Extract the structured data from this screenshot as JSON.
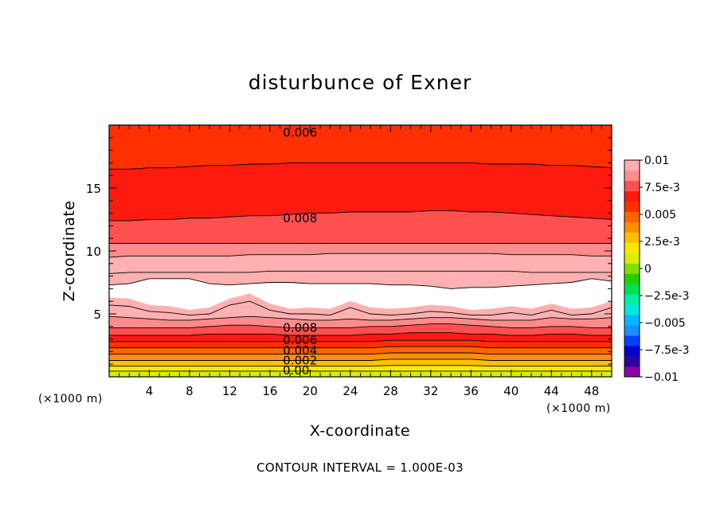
{
  "chart_data": {
    "type": "heatmap",
    "title": "disturbunce of Exner",
    "xlabel": "X-coordinate",
    "ylabel": "Z-coordinate",
    "x_unit": "(×1000 m)",
    "y_unit": "(×1000 m)",
    "xlim": [
      0,
      50
    ],
    "ylim": [
      0,
      20
    ],
    "x_ticks": [
      4,
      8,
      12,
      16,
      20,
      24,
      28,
      32,
      36,
      40,
      44,
      48
    ],
    "y_ticks": [
      5,
      10,
      15
    ],
    "colorbar": {
      "range": [
        -0.01,
        0.01
      ],
      "tick_labels": [
        "0.01",
        "7.5e-3",
        "0.005",
        "2.5e-3",
        "0",
        "−2.5e-3",
        "−0.005",
        "−7.5e-3",
        "−0.01"
      ],
      "tick_values": [
        0.01,
        0.0075,
        0.005,
        0.0025,
        0,
        -0.0025,
        -0.005,
        -0.0075,
        -0.01
      ],
      "colors": [
        "#8b00a8",
        "#3000a0",
        "#0000d0",
        "#0040f8",
        "#1890ff",
        "#00b8ff",
        "#00e8e0",
        "#00f0a0",
        "#00e050",
        "#20d000",
        "#80e000",
        "#d8f000",
        "#ffe800",
        "#ffc000",
        "#ff9000",
        "#ff6400",
        "#ff3000",
        "#ff1a10",
        "#ff5050",
        "#ff8c8c",
        "#ffb0b0"
      ]
    },
    "contour_interval": "CONTOUR INTERVAL = 1.000E-03",
    "contour_labels": [
      {
        "text": "0.006",
        "x": 19,
        "z": 19.4
      },
      {
        "text": "0.008",
        "x": 19,
        "z": 12.6
      },
      {
        "text": "0.008",
        "x": 19,
        "z": 3.9
      },
      {
        "text": "0.006",
        "x": 19,
        "z": 2.9
      },
      {
        "text": "0.004",
        "x": 19,
        "z": 2.1
      },
      {
        "text": "0.002",
        "x": 19,
        "z": 1.3
      },
      {
        "text": "0.00",
        "x": 18.6,
        "z": 0.5
      }
    ],
    "upper_bands": [
      {
        "value": 0.006,
        "z0": [
          20,
          20,
          20,
          20,
          20,
          20,
          20,
          20,
          20,
          20,
          20,
          20,
          20,
          20,
          20,
          20,
          20,
          20,
          20,
          20,
          20,
          20,
          20,
          20,
          20,
          20
        ],
        "z1": [
          16.5,
          16.5,
          16.6,
          16.6,
          16.7,
          16.8,
          16.8,
          16.9,
          16.9,
          17.0,
          17.0,
          17.0,
          17.0,
          17.0,
          17.0,
          17.0,
          17.0,
          17.0,
          17.0,
          16.9,
          16.9,
          16.9,
          16.8,
          16.8,
          16.7,
          16.6
        ]
      },
      {
        "value": 0.007,
        "z0": [
          16.5,
          16.5,
          16.6,
          16.6,
          16.7,
          16.8,
          16.8,
          16.9,
          16.9,
          17.0,
          17.0,
          17.0,
          17.0,
          17.0,
          17.0,
          17.0,
          17.0,
          17.0,
          17.0,
          16.9,
          16.9,
          16.9,
          16.8,
          16.8,
          16.7,
          16.6
        ],
        "z1": [
          12.4,
          12.4,
          12.5,
          12.5,
          12.6,
          12.6,
          12.7,
          12.8,
          12.8,
          12.9,
          13.0,
          13.0,
          13.1,
          13.1,
          13.1,
          13.1,
          13.2,
          13.2,
          13.1,
          13.1,
          13.0,
          12.9,
          12.8,
          12.7,
          12.6,
          12.5
        ]
      },
      {
        "value": 0.008,
        "z0": [
          12.4,
          12.4,
          12.5,
          12.5,
          12.6,
          12.6,
          12.7,
          12.8,
          12.8,
          12.9,
          13.0,
          13.0,
          13.1,
          13.1,
          13.1,
          13.1,
          13.2,
          13.2,
          13.1,
          13.1,
          13.0,
          12.9,
          12.8,
          12.7,
          12.6,
          12.5
        ],
        "z1": [
          10.6,
          10.6,
          10.6,
          10.6,
          10.6,
          10.6,
          10.6,
          10.6,
          10.6,
          10.6,
          10.6,
          10.6,
          10.6,
          10.6,
          10.6,
          10.6,
          10.6,
          10.6,
          10.6,
          10.6,
          10.6,
          10.6,
          10.6,
          10.6,
          10.6,
          10.6
        ]
      },
      {
        "value": 0.009,
        "z0": [
          10.6,
          10.6,
          10.6,
          10.6,
          10.6,
          10.6,
          10.6,
          10.6,
          10.6,
          10.6,
          10.6,
          10.6,
          10.6,
          10.6,
          10.6,
          10.6,
          10.6,
          10.6,
          10.6,
          10.6,
          10.6,
          10.6,
          10.6,
          10.6,
          10.6,
          10.6
        ],
        "z1": [
          9.5,
          9.6,
          9.6,
          9.6,
          9.6,
          9.6,
          9.6,
          9.7,
          9.7,
          9.7,
          9.7,
          9.8,
          9.8,
          9.8,
          9.8,
          9.8,
          9.8,
          9.8,
          9.8,
          9.8,
          9.7,
          9.7,
          9.7,
          9.7,
          9.6,
          9.6
        ]
      },
      {
        "value": 0.0095,
        "z0": [
          9.5,
          9.6,
          9.6,
          9.6,
          9.6,
          9.6,
          9.6,
          9.7,
          9.7,
          9.7,
          9.7,
          9.8,
          9.8,
          9.8,
          9.8,
          9.8,
          9.8,
          9.8,
          9.8,
          9.8,
          9.7,
          9.7,
          9.7,
          9.7,
          9.6,
          9.6
        ],
        "z1": [
          8.2,
          8.3,
          8.3,
          8.3,
          8.3,
          8.3,
          8.3,
          8.3,
          8.4,
          8.4,
          8.4,
          8.4,
          8.4,
          8.4,
          8.4,
          8.4,
          8.4,
          8.4,
          8.4,
          8.4,
          8.4,
          8.3,
          8.3,
          8.3,
          8.3,
          8.3
        ]
      },
      {
        "value": 0.0099,
        "z0": [
          8.2,
          8.3,
          8.3,
          8.3,
          8.3,
          8.3,
          8.3,
          8.3,
          8.4,
          8.4,
          8.4,
          8.4,
          8.4,
          8.4,
          8.4,
          8.4,
          8.4,
          8.4,
          8.4,
          8.4,
          8.4,
          8.3,
          8.3,
          8.3,
          8.3,
          8.3
        ],
        "z1": [
          7.3,
          7.4,
          7.8,
          7.8,
          7.8,
          7.4,
          7.3,
          7.4,
          7.5,
          7.5,
          7.4,
          7.4,
          7.4,
          7.4,
          7.3,
          7.3,
          7.2,
          7.0,
          7.1,
          7.1,
          7.2,
          7.3,
          7.4,
          7.5,
          7.8,
          7.6
        ]
      }
    ],
    "lower_bands": [
      {
        "value": 0.0099,
        "z0": [
          6.3,
          6.2,
          5.7,
          5.6,
          5.3,
          5.5,
          6.2,
          6.6,
          5.8,
          5.4,
          5.5,
          5.4,
          6.0,
          5.5,
          5.4,
          5.5,
          5.7,
          5.6,
          5.3,
          5.4,
          5.6,
          5.4,
          5.8,
          5.4,
          5.5,
          6.0
        ],
        "z1": [
          5.7,
          5.6,
          5.2,
          5.1,
          4.9,
          5.0,
          5.7,
          6.0,
          5.3,
          5.0,
          5.0,
          4.9,
          5.5,
          5.0,
          4.9,
          5.0,
          5.2,
          5.1,
          4.9,
          4.9,
          5.1,
          4.9,
          5.3,
          4.9,
          5.0,
          5.5
        ]
      },
      {
        "value": 0.0095,
        "z0": [
          5.7,
          5.6,
          5.2,
          5.1,
          4.9,
          5.0,
          5.7,
          6.0,
          5.3,
          5.0,
          5.0,
          4.9,
          5.5,
          5.0,
          4.9,
          5.0,
          5.2,
          5.1,
          4.9,
          4.9,
          5.1,
          4.9,
          5.3,
          4.9,
          5.0,
          5.5
        ],
        "z1": [
          4.8,
          4.7,
          4.6,
          4.5,
          4.5,
          4.6,
          4.7,
          4.8,
          4.7,
          4.6,
          4.5,
          4.5,
          4.6,
          4.5,
          4.5,
          4.6,
          4.7,
          4.7,
          4.6,
          4.5,
          4.5,
          4.5,
          4.7,
          4.6,
          4.6,
          4.7
        ]
      },
      {
        "value": 0.009,
        "z0": [
          4.8,
          4.7,
          4.6,
          4.5,
          4.5,
          4.6,
          4.7,
          4.8,
          4.7,
          4.6,
          4.5,
          4.5,
          4.6,
          4.5,
          4.5,
          4.6,
          4.7,
          4.7,
          4.6,
          4.5,
          4.5,
          4.5,
          4.7,
          4.6,
          4.6,
          4.7
        ],
        "z1": [
          3.9,
          3.9,
          3.9,
          3.9,
          3.9,
          4.0,
          4.1,
          4.1,
          4.0,
          3.9,
          3.9,
          3.9,
          3.9,
          4.0,
          4.0,
          4.1,
          4.2,
          4.2,
          4.1,
          4.0,
          3.9,
          3.9,
          4.0,
          4.0,
          3.9,
          3.9
        ]
      },
      {
        "value": 0.008,
        "z0": [
          3.9,
          3.9,
          3.9,
          3.9,
          3.9,
          4.0,
          4.1,
          4.1,
          4.0,
          3.9,
          3.9,
          3.9,
          3.9,
          4.0,
          4.0,
          4.1,
          4.2,
          4.2,
          4.1,
          4.0,
          3.9,
          3.9,
          4.0,
          4.0,
          3.9,
          3.9
        ],
        "z1": [
          3.3,
          3.3,
          3.3,
          3.3,
          3.3,
          3.4,
          3.4,
          3.4,
          3.4,
          3.3,
          3.3,
          3.3,
          3.3,
          3.4,
          3.4,
          3.5,
          3.5,
          3.5,
          3.4,
          3.4,
          3.3,
          3.3,
          3.4,
          3.4,
          3.3,
          3.3
        ]
      },
      {
        "value": 0.007,
        "z0": [
          3.3,
          3.3,
          3.3,
          3.3,
          3.3,
          3.4,
          3.4,
          3.4,
          3.4,
          3.3,
          3.3,
          3.3,
          3.3,
          3.4,
          3.4,
          3.5,
          3.5,
          3.5,
          3.4,
          3.4,
          3.3,
          3.3,
          3.4,
          3.4,
          3.3,
          3.3
        ],
        "z1": [
          2.8,
          2.8,
          2.8,
          2.8,
          2.8,
          2.8,
          2.8,
          2.8,
          2.8,
          2.8,
          2.8,
          2.8,
          2.8,
          2.8,
          2.9,
          2.9,
          2.9,
          2.9,
          2.9,
          2.8,
          2.8,
          2.8,
          2.8,
          2.8,
          2.8,
          2.8
        ]
      },
      {
        "value": 0.006,
        "z0": [
          2.8,
          2.8,
          2.8,
          2.8,
          2.8,
          2.8,
          2.8,
          2.8,
          2.8,
          2.8,
          2.8,
          2.8,
          2.8,
          2.8,
          2.9,
          2.9,
          2.9,
          2.9,
          2.9,
          2.8,
          2.8,
          2.8,
          2.8,
          2.8,
          2.8,
          2.8
        ],
        "z1": [
          2.3,
          2.3,
          2.3,
          2.3,
          2.3,
          2.3,
          2.3,
          2.3,
          2.3,
          2.3,
          2.3,
          2.3,
          2.3,
          2.3,
          2.4,
          2.4,
          2.4,
          2.4,
          2.4,
          2.3,
          2.3,
          2.3,
          2.3,
          2.3,
          2.3,
          2.3
        ]
      },
      {
        "value": 0.005,
        "z0": [
          2.3,
          2.3,
          2.3,
          2.3,
          2.3,
          2.3,
          2.3,
          2.3,
          2.3,
          2.3,
          2.3,
          2.3,
          2.3,
          2.3,
          2.4,
          2.4,
          2.4,
          2.4,
          2.4,
          2.3,
          2.3,
          2.3,
          2.3,
          2.3,
          2.3,
          2.3
        ],
        "z1": [
          1.8,
          1.8,
          1.8,
          1.8,
          1.8,
          1.8,
          1.8,
          1.8,
          1.8,
          1.8,
          1.8,
          1.8,
          1.8,
          1.8,
          1.9,
          1.9,
          1.9,
          1.9,
          1.9,
          1.8,
          1.8,
          1.8,
          1.8,
          1.8,
          1.8,
          1.8
        ]
      },
      {
        "value": 0.004,
        "z0": [
          1.8,
          1.8,
          1.8,
          1.8,
          1.8,
          1.8,
          1.8,
          1.8,
          1.8,
          1.8,
          1.8,
          1.8,
          1.8,
          1.8,
          1.9,
          1.9,
          1.9,
          1.9,
          1.9,
          1.8,
          1.8,
          1.8,
          1.8,
          1.8,
          1.8,
          1.8
        ],
        "z1": [
          1.3,
          1.3,
          1.3,
          1.3,
          1.3,
          1.3,
          1.3,
          1.3,
          1.3,
          1.3,
          1.3,
          1.3,
          1.3,
          1.3,
          1.4,
          1.4,
          1.4,
          1.4,
          1.4,
          1.3,
          1.3,
          1.3,
          1.3,
          1.3,
          1.3,
          1.3
        ]
      },
      {
        "value": 0.003,
        "z0": [
          1.3,
          1.3,
          1.3,
          1.3,
          1.3,
          1.3,
          1.3,
          1.3,
          1.3,
          1.3,
          1.3,
          1.3,
          1.3,
          1.3,
          1.4,
          1.4,
          1.4,
          1.4,
          1.4,
          1.3,
          1.3,
          1.3,
          1.3,
          1.3,
          1.3,
          1.3
        ],
        "z1": [
          0.85,
          0.85,
          0.85,
          0.85,
          0.85,
          0.85,
          0.85,
          0.85,
          0.85,
          0.85,
          0.85,
          0.85,
          0.85,
          0.85,
          0.9,
          0.9,
          0.9,
          0.9,
          0.9,
          0.85,
          0.85,
          0.85,
          0.85,
          0.85,
          0.85,
          0.85
        ]
      },
      {
        "value": 0.002,
        "z0": [
          0.85,
          0.85,
          0.85,
          0.85,
          0.85,
          0.85,
          0.85,
          0.85,
          0.85,
          0.85,
          0.85,
          0.85,
          0.85,
          0.85,
          0.9,
          0.9,
          0.9,
          0.9,
          0.9,
          0.85,
          0.85,
          0.85,
          0.85,
          0.85,
          0.85,
          0.85
        ],
        "z1": [
          0.45,
          0.45,
          0.45,
          0.45,
          0.45,
          0.45,
          0.45,
          0.45,
          0.45,
          0.45,
          0.45,
          0.45,
          0.45,
          0.45,
          0.45,
          0.45,
          0.45,
          0.45,
          0.45,
          0.45,
          0.45,
          0.45,
          0.45,
          0.45,
          0.45,
          0.45
        ]
      },
      {
        "value": 0.001,
        "z0": [
          0.45,
          0.45,
          0.45,
          0.45,
          0.45,
          0.45,
          0.45,
          0.45,
          0.45,
          0.45,
          0.45,
          0.45,
          0.45,
          0.45,
          0.45,
          0.45,
          0.45,
          0.45,
          0.45,
          0.45,
          0.45,
          0.45,
          0.45,
          0.45,
          0.45,
          0.45
        ],
        "z1": [
          0,
          0,
          0,
          0,
          0,
          0,
          0,
          0,
          0,
          0,
          0,
          0,
          0,
          0,
          0,
          0,
          0,
          0,
          0,
          0,
          0,
          0,
          0,
          0,
          0,
          0
        ]
      }
    ]
  }
}
